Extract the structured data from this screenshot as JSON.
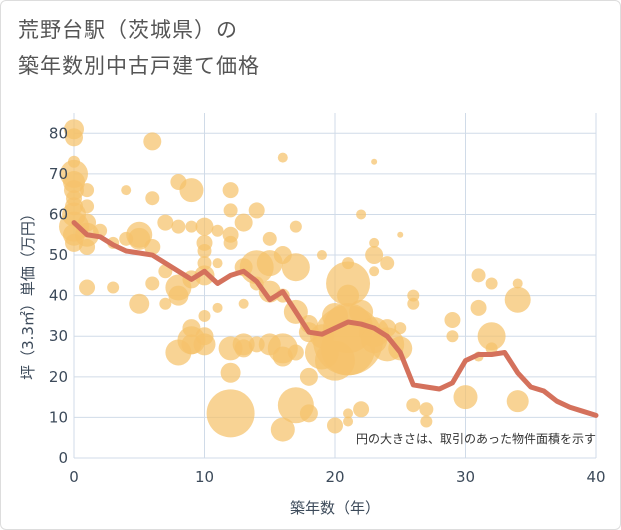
{
  "title_line1": "荒野台駅（茨城県）の",
  "title_line2": "築年数別中古戸建て価格",
  "chart_data": {
    "type": "scatter",
    "xlabel": "築年数（年）",
    "ylabel": "坪（3.3㎡）単価（万円）",
    "xlim": [
      0,
      40
    ],
    "ylim": [
      0,
      85
    ],
    "x_ticks": [
      0,
      10,
      20,
      30,
      40
    ],
    "y_ticks": [
      0,
      10,
      20,
      30,
      40,
      50,
      60,
      70,
      80
    ],
    "grid": true,
    "note": "円の大きさは、取引のあった物件面積を示す",
    "bubble_color": "#f5c26b",
    "line_color": "#d4715c",
    "bubbles": [
      {
        "x": 0,
        "y": 81,
        "s": 10
      },
      {
        "x": 0,
        "y": 79,
        "s": 9
      },
      {
        "x": 0,
        "y": 73,
        "s": 6
      },
      {
        "x": 0,
        "y": 70,
        "s": 14
      },
      {
        "x": 0,
        "y": 68,
        "s": 11
      },
      {
        "x": 0,
        "y": 66,
        "s": 10
      },
      {
        "x": 0,
        "y": 64,
        "s": 8
      },
      {
        "x": 0,
        "y": 62,
        "s": 9
      },
      {
        "x": 0,
        "y": 60,
        "s": 12
      },
      {
        "x": 0,
        "y": 57,
        "s": 15
      },
      {
        "x": 0,
        "y": 55,
        "s": 11
      },
      {
        "x": 0,
        "y": 53,
        "s": 9
      },
      {
        "x": 1,
        "y": 66,
        "s": 7
      },
      {
        "x": 1,
        "y": 62,
        "s": 7
      },
      {
        "x": 1,
        "y": 58,
        "s": 9
      },
      {
        "x": 1,
        "y": 55,
        "s": 12
      },
      {
        "x": 1,
        "y": 52,
        "s": 8
      },
      {
        "x": 1,
        "y": 42,
        "s": 8
      },
      {
        "x": 2,
        "y": 56,
        "s": 7
      },
      {
        "x": 3,
        "y": 53,
        "s": 6
      },
      {
        "x": 3,
        "y": 42,
        "s": 6
      },
      {
        "x": 4,
        "y": 66,
        "s": 5
      },
      {
        "x": 4,
        "y": 54,
        "s": 7
      },
      {
        "x": 5,
        "y": 55,
        "s": 13
      },
      {
        "x": 5,
        "y": 54,
        "s": 11
      },
      {
        "x": 5,
        "y": 38,
        "s": 10
      },
      {
        "x": 6,
        "y": 78,
        "s": 9
      },
      {
        "x": 6,
        "y": 64,
        "s": 7
      },
      {
        "x": 6,
        "y": 52,
        "s": 8
      },
      {
        "x": 6,
        "y": 43,
        "s": 7
      },
      {
        "x": 7,
        "y": 58,
        "s": 8
      },
      {
        "x": 7,
        "y": 46,
        "s": 7
      },
      {
        "x": 7,
        "y": 38,
        "s": 6
      },
      {
        "x": 8,
        "y": 68,
        "s": 8
      },
      {
        "x": 8,
        "y": 57,
        "s": 7
      },
      {
        "x": 8,
        "y": 42,
        "s": 13
      },
      {
        "x": 8,
        "y": 40,
        "s": 10
      },
      {
        "x": 8,
        "y": 26,
        "s": 13
      },
      {
        "x": 9,
        "y": 66,
        "s": 12
      },
      {
        "x": 9,
        "y": 57,
        "s": 6
      },
      {
        "x": 9,
        "y": 44,
        "s": 9
      },
      {
        "x": 9,
        "y": 32,
        "s": 9
      },
      {
        "x": 9,
        "y": 29,
        "s": 14
      },
      {
        "x": 9,
        "y": 28,
        "s": 10
      },
      {
        "x": 10,
        "y": 57,
        "s": 9
      },
      {
        "x": 10,
        "y": 53,
        "s": 8
      },
      {
        "x": 10,
        "y": 51,
        "s": 7
      },
      {
        "x": 10,
        "y": 48,
        "s": 7
      },
      {
        "x": 10,
        "y": 45,
        "s": 10
      },
      {
        "x": 10,
        "y": 35,
        "s": 6
      },
      {
        "x": 10,
        "y": 30,
        "s": 9
      },
      {
        "x": 10,
        "y": 28,
        "s": 11
      },
      {
        "x": 11,
        "y": 56,
        "s": 6
      },
      {
        "x": 11,
        "y": 48,
        "s": 5
      },
      {
        "x": 11,
        "y": 37,
        "s": 5
      },
      {
        "x": 12,
        "y": 66,
        "s": 8
      },
      {
        "x": 12,
        "y": 61,
        "s": 7
      },
      {
        "x": 12,
        "y": 55,
        "s": 8
      },
      {
        "x": 12,
        "y": 53,
        "s": 7
      },
      {
        "x": 12,
        "y": 27,
        "s": 12
      },
      {
        "x": 12,
        "y": 21,
        "s": 10
      },
      {
        "x": 12,
        "y": 11,
        "s": 24
      },
      {
        "x": 13,
        "y": 58,
        "s": 9
      },
      {
        "x": 13,
        "y": 47,
        "s": 9
      },
      {
        "x": 13,
        "y": 38,
        "s": 5
      },
      {
        "x": 13,
        "y": 28,
        "s": 11
      },
      {
        "x": 13,
        "y": 27,
        "s": 9
      },
      {
        "x": 14,
        "y": 61,
        "s": 8
      },
      {
        "x": 14,
        "y": 47,
        "s": 17
      },
      {
        "x": 14,
        "y": 43,
        "s": 7
      },
      {
        "x": 14,
        "y": 28,
        "s": 8
      },
      {
        "x": 15,
        "y": 54,
        "s": 7
      },
      {
        "x": 15,
        "y": 48,
        "s": 13
      },
      {
        "x": 15,
        "y": 41,
        "s": 11
      },
      {
        "x": 15,
        "y": 28,
        "s": 11
      },
      {
        "x": 16,
        "y": 74,
        "s": 5
      },
      {
        "x": 16,
        "y": 50,
        "s": 9
      },
      {
        "x": 16,
        "y": 40,
        "s": 7
      },
      {
        "x": 16,
        "y": 27,
        "s": 15
      },
      {
        "x": 16,
        "y": 25,
        "s": 10
      },
      {
        "x": 16,
        "y": 7,
        "s": 12
      },
      {
        "x": 17,
        "y": 57,
        "s": 6
      },
      {
        "x": 17,
        "y": 47,
        "s": 14
      },
      {
        "x": 17,
        "y": 36,
        "s": 12
      },
      {
        "x": 17,
        "y": 26,
        "s": 8
      },
      {
        "x": 17,
        "y": 13,
        "s": 18
      },
      {
        "x": 18,
        "y": 33,
        "s": 9
      },
      {
        "x": 18,
        "y": 31,
        "s": 10
      },
      {
        "x": 18,
        "y": 20,
        "s": 9
      },
      {
        "x": 18,
        "y": 11,
        "s": 9
      },
      {
        "x": 19,
        "y": 50,
        "s": 5
      },
      {
        "x": 19,
        "y": 30,
        "s": 12
      },
      {
        "x": 19,
        "y": 26,
        "s": 17
      },
      {
        "x": 20,
        "y": 35,
        "s": 13
      },
      {
        "x": 20,
        "y": 24,
        "s": 20
      },
      {
        "x": 20,
        "y": 8,
        "s": 8
      },
      {
        "x": 21,
        "y": 48,
        "s": 6
      },
      {
        "x": 21,
        "y": 43,
        "s": 22
      },
      {
        "x": 21,
        "y": 40,
        "s": 11
      },
      {
        "x": 21,
        "y": 32,
        "s": 25
      },
      {
        "x": 21,
        "y": 29,
        "s": 35
      },
      {
        "x": 21,
        "y": 27,
        "s": 27
      },
      {
        "x": 21,
        "y": 11,
        "s": 5
      },
      {
        "x": 21,
        "y": 9,
        "s": 5
      },
      {
        "x": 22,
        "y": 60,
        "s": 5
      },
      {
        "x": 22,
        "y": 36,
        "s": 12
      },
      {
        "x": 22,
        "y": 12,
        "s": 8
      },
      {
        "x": 23,
        "y": 73,
        "s": 3
      },
      {
        "x": 23,
        "y": 53,
        "s": 5
      },
      {
        "x": 23,
        "y": 50,
        "s": 9
      },
      {
        "x": 23,
        "y": 46,
        "s": 5
      },
      {
        "x": 23,
        "y": 31,
        "s": 15
      },
      {
        "x": 23,
        "y": 29,
        "s": 13
      },
      {
        "x": 24,
        "y": 48,
        "s": 7
      },
      {
        "x": 24,
        "y": 32,
        "s": 9
      },
      {
        "x": 24,
        "y": 28,
        "s": 17
      },
      {
        "x": 25,
        "y": 55,
        "s": 3
      },
      {
        "x": 25,
        "y": 32,
        "s": 6
      },
      {
        "x": 25,
        "y": 27,
        "s": 12
      },
      {
        "x": 26,
        "y": 40,
        "s": 6
      },
      {
        "x": 26,
        "y": 38,
        "s": 6
      },
      {
        "x": 26,
        "y": 13,
        "s": 7
      },
      {
        "x": 27,
        "y": 12,
        "s": 7
      },
      {
        "x": 27,
        "y": 9,
        "s": 6
      },
      {
        "x": 29,
        "y": 34,
        "s": 8
      },
      {
        "x": 29,
        "y": 30,
        "s": 6
      },
      {
        "x": 30,
        "y": 15,
        "s": 12
      },
      {
        "x": 31,
        "y": 45,
        "s": 7
      },
      {
        "x": 31,
        "y": 37,
        "s": 8
      },
      {
        "x": 31,
        "y": 25,
        "s": 5
      },
      {
        "x": 32,
        "y": 43,
        "s": 6
      },
      {
        "x": 32,
        "y": 30,
        "s": 14
      },
      {
        "x": 32,
        "y": 27,
        "s": 6
      },
      {
        "x": 34,
        "y": 43,
        "s": 5
      },
      {
        "x": 34,
        "y": 39,
        "s": 13
      },
      {
        "x": 34,
        "y": 14,
        "s": 11
      }
    ],
    "series": [
      {
        "type": "line",
        "x": [
          0,
          1,
          2,
          3,
          4,
          5,
          6,
          7,
          8,
          9,
          10,
          11,
          12,
          13,
          14,
          15,
          16,
          17,
          18,
          19,
          20,
          21,
          22,
          23,
          24,
          25,
          26,
          27,
          28,
          29,
          30,
          31,
          32,
          33,
          34,
          35,
          36,
          37,
          38,
          39,
          40
        ],
        "values": [
          58,
          55,
          54.5,
          52.5,
          51,
          50.5,
          50,
          48,
          46,
          44,
          46,
          43,
          45,
          46,
          43.5,
          39,
          41,
          36,
          31,
          30.5,
          32,
          33.5,
          33,
          32,
          30,
          26,
          18,
          17.5,
          17,
          18.5,
          24,
          25.5,
          25.5,
          26,
          21,
          17.5,
          16.5,
          14,
          12.5,
          11.5,
          10.5
        ]
      }
    ]
  }
}
